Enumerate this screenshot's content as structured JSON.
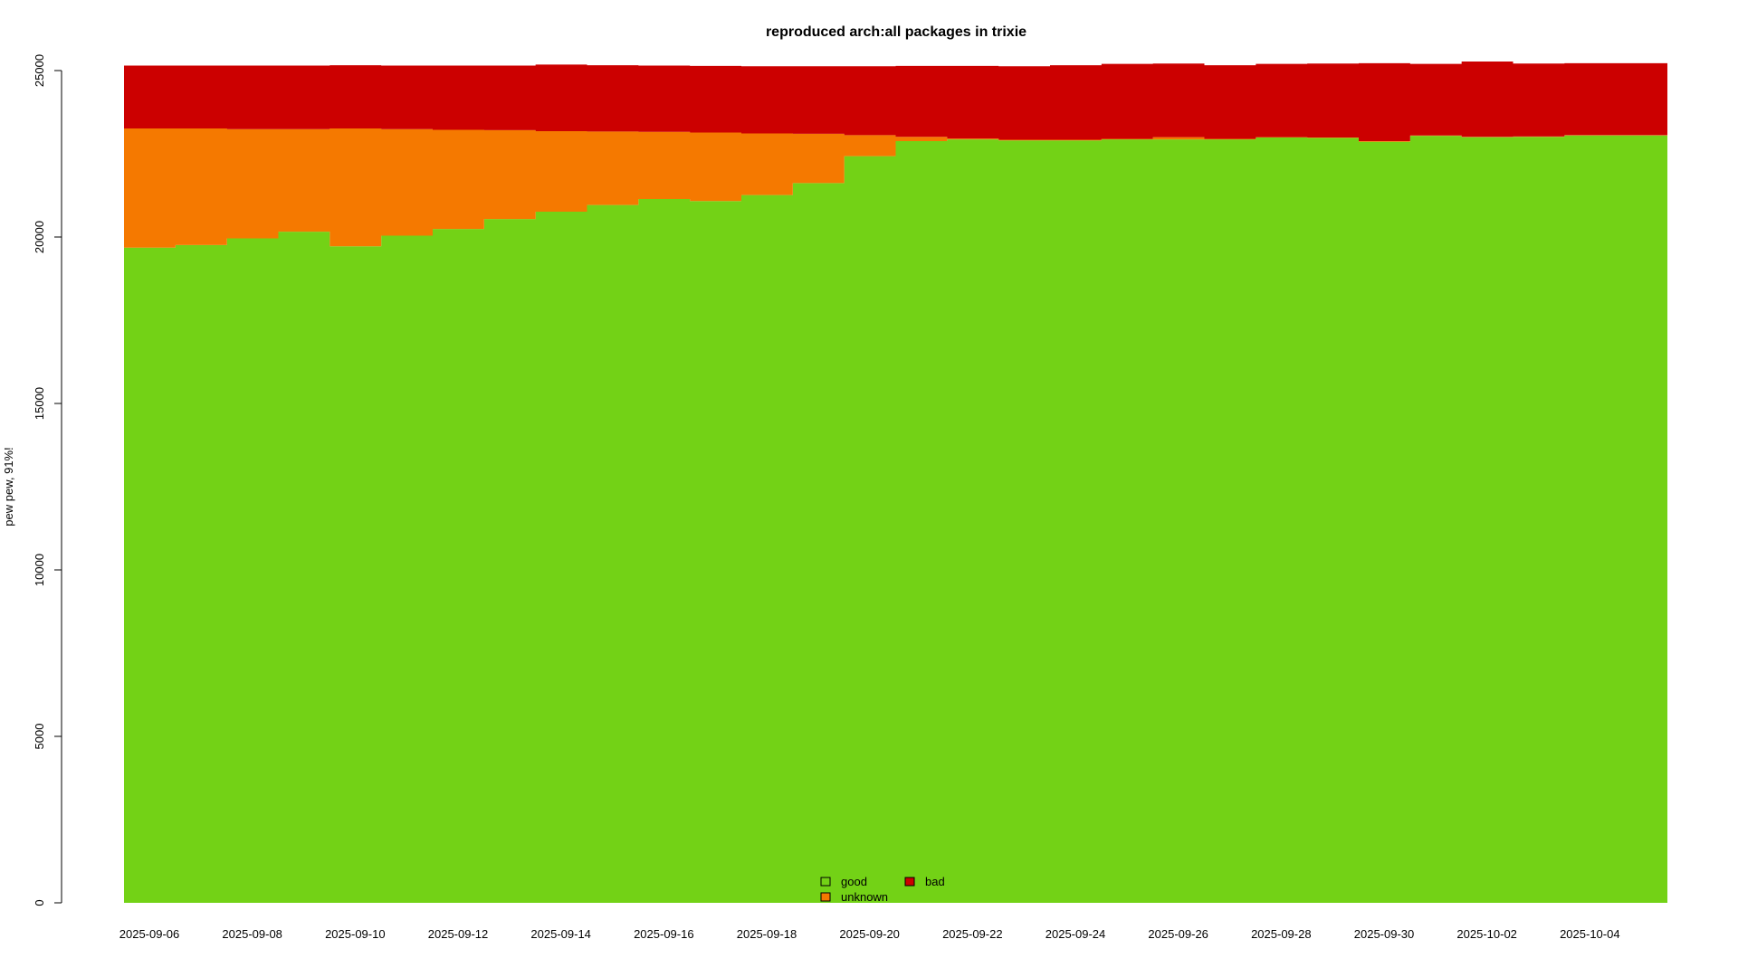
{
  "chart_data": {
    "type": "area",
    "title": "reproduced arch:all packages in trixie",
    "ylabel": "pew pew, 91%!",
    "xlabel": "",
    "ylim": [
      0,
      25000
    ],
    "yticks": [
      0,
      5000,
      10000,
      15000,
      20000,
      25000
    ],
    "x": [
      "2025-09-06",
      "2025-09-07",
      "2025-09-08",
      "2025-09-09",
      "2025-09-10",
      "2025-09-11",
      "2025-09-12",
      "2025-09-13",
      "2025-09-14",
      "2025-09-15",
      "2025-09-16",
      "2025-09-17",
      "2025-09-18",
      "2025-09-19",
      "2025-09-20",
      "2025-09-21",
      "2025-09-22",
      "2025-09-23",
      "2025-09-24",
      "2025-09-25",
      "2025-09-26",
      "2025-09-27",
      "2025-09-28",
      "2025-09-29",
      "2025-09-30",
      "2025-10-01",
      "2025-10-02",
      "2025-10-03",
      "2025-10-04",
      "2025-10-05"
    ],
    "xticks": [
      "2025-09-06",
      "2025-09-08",
      "2025-09-10",
      "2025-09-12",
      "2025-09-14",
      "2025-09-16",
      "2025-09-18",
      "2025-09-20",
      "2025-09-22",
      "2025-09-24",
      "2025-09-26",
      "2025-09-28",
      "2025-09-30",
      "2025-10-02",
      "2025-10-04"
    ],
    "series": [
      {
        "name": "good",
        "color": "#73d216",
        "values": [
          19680,
          19760,
          19960,
          20160,
          19720,
          20040,
          20240,
          20540,
          20760,
          20960,
          21140,
          21080,
          21260,
          21620,
          22430,
          22880,
          22930,
          22900,
          22900,
          22930,
          22930,
          22930,
          22990,
          22980,
          22860,
          23040,
          23000,
          23010,
          23050,
          23050
        ]
      },
      {
        "name": "unknown",
        "color": "#f57900",
        "values": [
          3580,
          3500,
          3280,
          3080,
          3540,
          3200,
          2980,
          2670,
          2420,
          2210,
          2020,
          2060,
          1850,
          1480,
          630,
          130,
          30,
          20,
          20,
          20,
          70,
          20,
          10,
          10,
          20,
          10,
          10,
          10,
          10,
          10
        ]
      },
      {
        "name": "bad",
        "color": "#cc0000",
        "values": [
          1890,
          1890,
          1910,
          1910,
          1900,
          1910,
          1930,
          1940,
          2000,
          1990,
          1990,
          2000,
          2020,
          2030,
          2070,
          2130,
          2180,
          2210,
          2240,
          2250,
          2210,
          2210,
          2200,
          2220,
          2340,
          2150,
          2260,
          2190,
          2160,
          2160
        ]
      }
    ],
    "legend": {
      "placement": "bottom-center",
      "entries": [
        "good",
        "bad",
        "unknown"
      ]
    },
    "grid": false
  }
}
